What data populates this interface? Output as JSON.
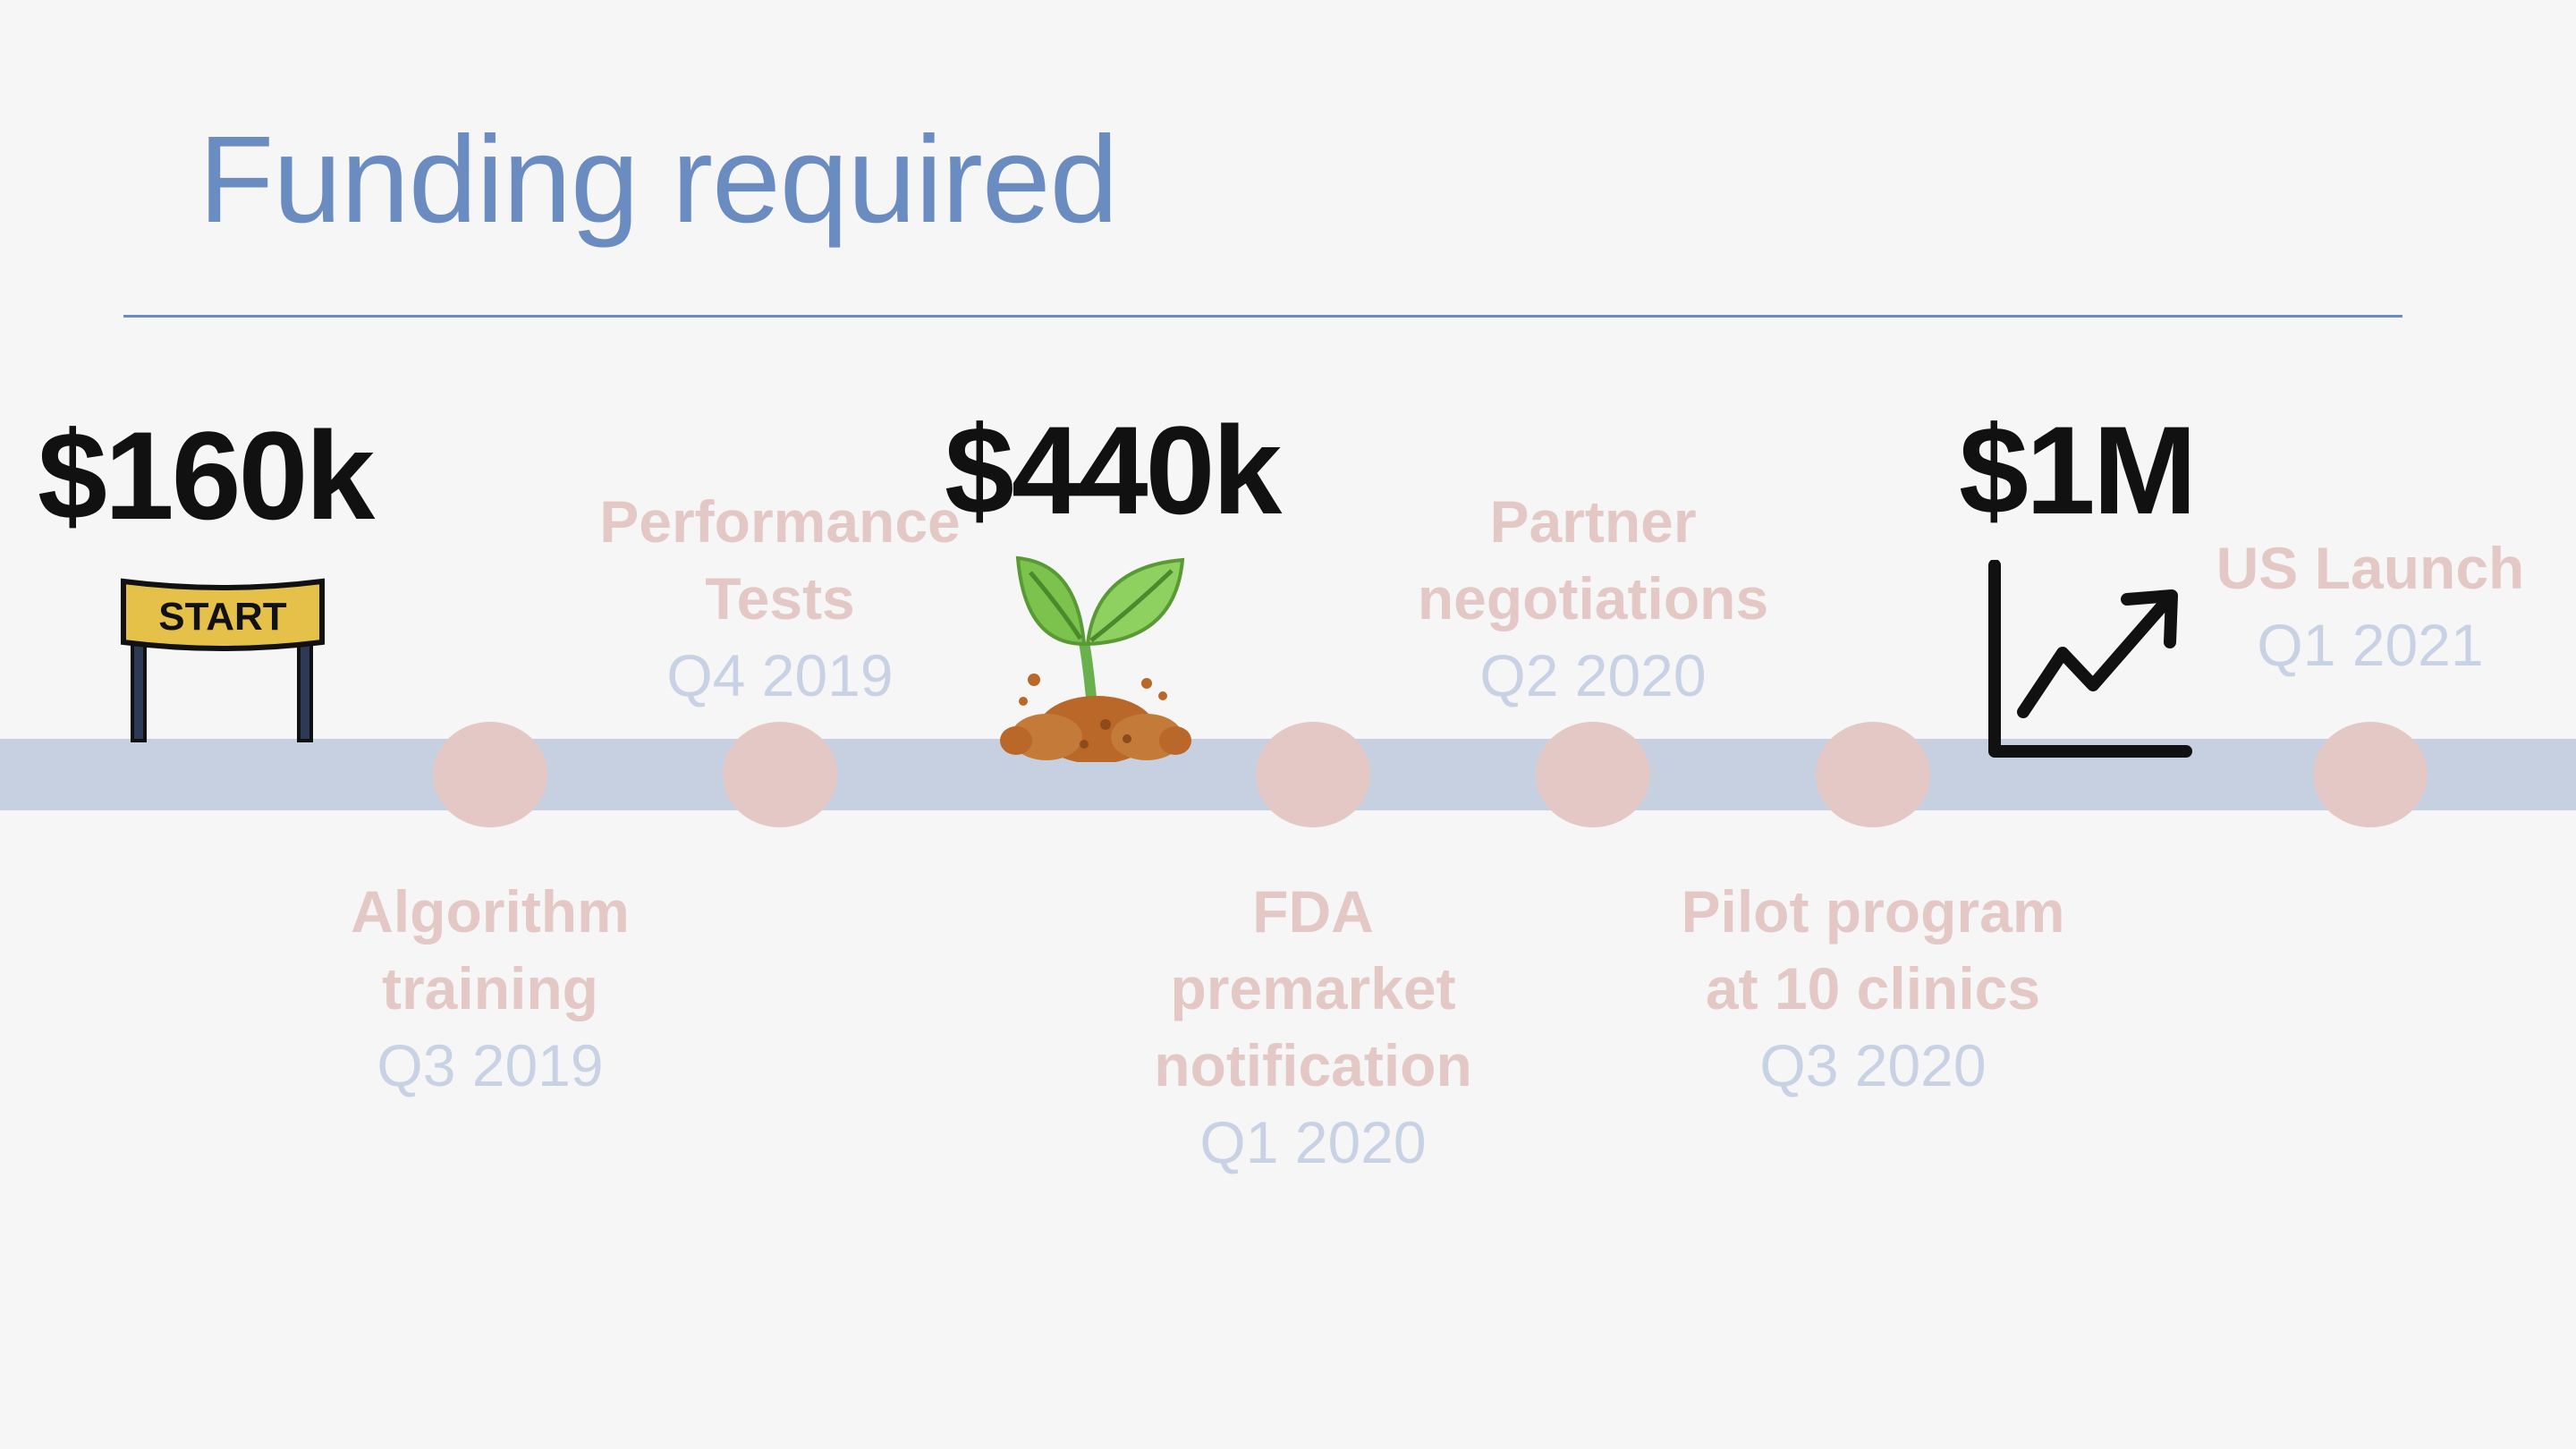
{
  "title": "Funding required",
  "colors": {
    "title": "#6b8cc0",
    "track": "#c6d0e0",
    "milestone_dot": "#e3c8c6",
    "milestone_label": "#e3c8c6",
    "milestone_date": "#c8d2e4",
    "amount": "#111111",
    "background": "#f6f6f6"
  },
  "funding_rounds": [
    {
      "amount": "$160k",
      "icon": "start-sign-icon"
    },
    {
      "amount": "$440k",
      "icon": "seedling-icon"
    },
    {
      "amount": "$1M",
      "icon": "growth-chart-icon"
    }
  ],
  "milestones": [
    {
      "name_line1": "Algorithm",
      "name_line2": "training",
      "name_line3": "",
      "date": "Q3 2019"
    },
    {
      "name_line1": "Performance",
      "name_line2": "Tests",
      "name_line3": "",
      "date": "Q4 2019"
    },
    {
      "name_line1": "FDA",
      "name_line2": "premarket",
      "name_line3": "notification",
      "date": "Q1 2020"
    },
    {
      "name_line1": "Partner",
      "name_line2": "negotiations",
      "name_line3": "",
      "date": "Q2 2020"
    },
    {
      "name_line1": "Pilot program",
      "name_line2": "at 10 clinics",
      "name_line3": "",
      "date": "Q3 2020"
    },
    {
      "name_line1": "US Launch",
      "name_line2": "",
      "name_line3": "",
      "date": "Q1 2021"
    }
  ],
  "start_sign_text": "START"
}
